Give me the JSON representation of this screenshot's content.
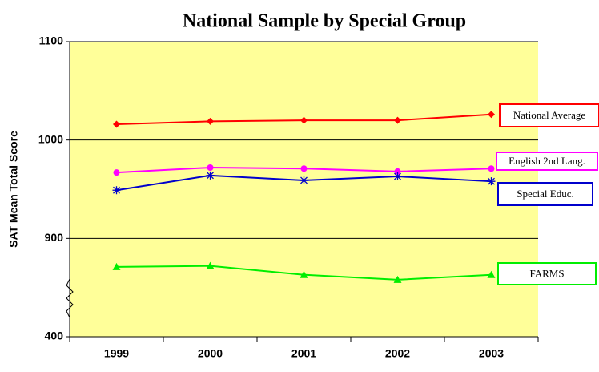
{
  "chart_data": {
    "type": "line",
    "title": "National Sample by Special Group",
    "y_label": "SAT  Mean Total Score",
    "categories": [
      "1999",
      "2000",
      "2001",
      "2002",
      "2003"
    ],
    "ylim": [
      400,
      1100
    ],
    "yticks": [
      400,
      900,
      1000,
      1100
    ],
    "ybreak": [
      400,
      800
    ],
    "grid": true,
    "background": "#ffff99",
    "series": [
      {
        "name": "National Average",
        "color": "#ff0000",
        "marker": "diamond",
        "values": [
          1016,
          1019,
          1020,
          1020,
          1026
        ]
      },
      {
        "name": "English 2nd Lang.",
        "color": "#ff00ff",
        "marker": "circle",
        "values": [
          967,
          972,
          971,
          968,
          971
        ]
      },
      {
        "name": "Special Educ.",
        "color": "#0000cc",
        "marker": "asterisk",
        "values": [
          949,
          964,
          959,
          963,
          958
        ]
      },
      {
        "name": "FARMS",
        "color": "#00ee00",
        "marker": "triangle",
        "values": [
          871,
          872,
          863,
          858,
          863
        ]
      }
    ]
  }
}
